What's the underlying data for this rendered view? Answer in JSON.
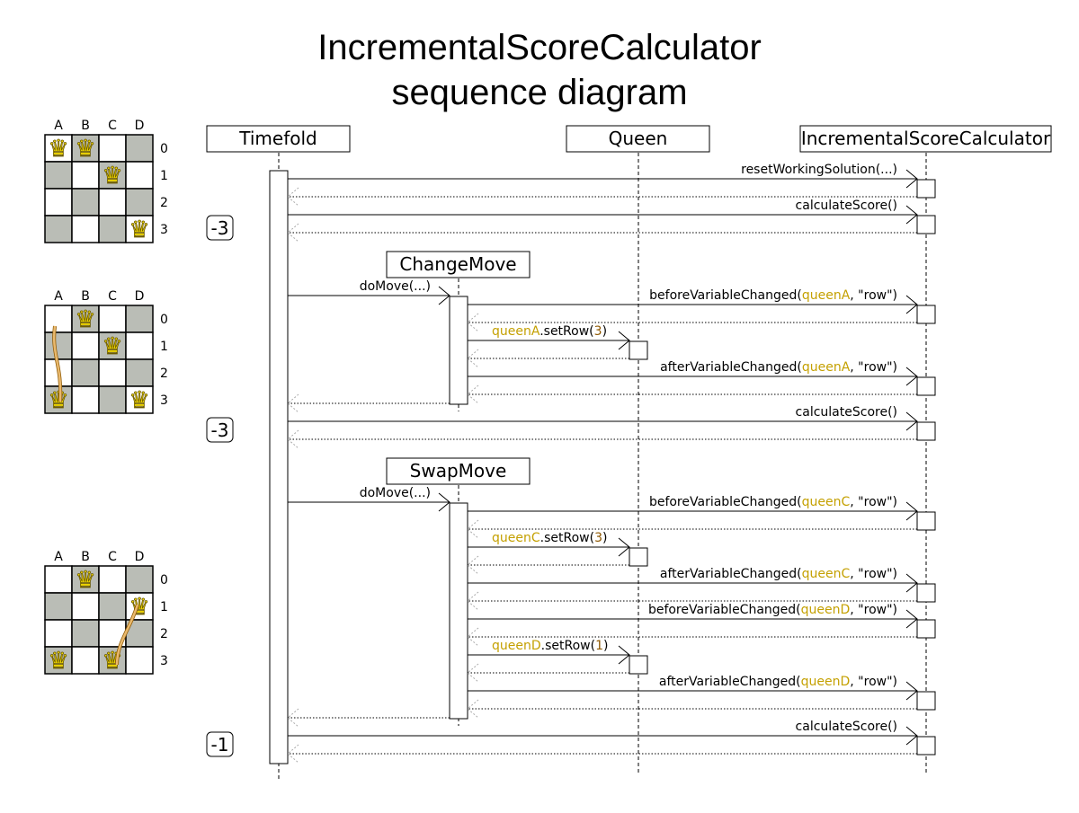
{
  "title": [
    "IncrementalScoreCalculator",
    "sequence diagram"
  ],
  "colors": {
    "variable": "#c4a000",
    "value": "#8f5902",
    "square_dark": "#babdb6",
    "square_light": "#ffffff",
    "queen": "#edd400",
    "arrow": "#e9b96e"
  },
  "participants": {
    "timefold": "Timefold",
    "queen": "Queen",
    "isc": "IncrementalScoreCalculator",
    "change_move": "ChangeMove",
    "swap_move": "SwapMove"
  },
  "board": {
    "columns": [
      "A",
      "B",
      "C",
      "D"
    ],
    "rows": [
      "0",
      "1",
      "2",
      "3"
    ]
  },
  "boards": [
    {
      "queens": [
        [
          0,
          0
        ],
        [
          1,
          0
        ],
        [
          2,
          1
        ],
        [
          3,
          3
        ]
      ],
      "arrow": null
    },
    {
      "queens": [
        [
          1,
          0
        ],
        [
          2,
          1
        ],
        [
          0,
          3
        ],
        [
          3,
          3
        ]
      ],
      "arrow": {
        "from": "A0",
        "to": "A3"
      }
    },
    {
      "queens": [
        [
          1,
          0
        ],
        [
          3,
          1
        ],
        [
          0,
          3
        ],
        [
          2,
          3
        ]
      ],
      "arrow": {
        "from": "C3",
        "to": "D1",
        "bidirectional": true
      }
    }
  ],
  "scores": [
    "-3",
    "-3",
    "-1"
  ],
  "messages": [
    [
      {
        "t": "resetWorkingSolution(...)"
      }
    ],
    [
      {
        "t": "calculateScore()"
      }
    ],
    [
      {
        "t": "doMove(...)"
      }
    ],
    [
      {
        "t": "beforeVariableChanged("
      },
      {
        "t": "queenA",
        "c": "variable"
      },
      {
        "t": ", \"row\")"
      }
    ],
    [
      {
        "t": "queenA",
        "c": "variable"
      },
      {
        "t": ".setRow("
      },
      {
        "t": "3",
        "c": "value"
      },
      {
        "t": ")"
      }
    ],
    [
      {
        "t": "afterVariableChanged("
      },
      {
        "t": "queenA",
        "c": "variable"
      },
      {
        "t": ", \"row\")"
      }
    ],
    [
      {
        "t": "calculateScore()"
      }
    ],
    [
      {
        "t": "doMove(...)"
      }
    ],
    [
      {
        "t": "beforeVariableChanged("
      },
      {
        "t": "queenC",
        "c": "variable"
      },
      {
        "t": ", \"row\")"
      }
    ],
    [
      {
        "t": "queenC",
        "c": "variable"
      },
      {
        "t": ".setRow("
      },
      {
        "t": "3",
        "c": "value"
      },
      {
        "t": ")"
      }
    ],
    [
      {
        "t": "afterVariableChanged("
      },
      {
        "t": "queenC",
        "c": "variable"
      },
      {
        "t": ", \"row\")"
      }
    ],
    [
      {
        "t": "beforeVariableChanged("
      },
      {
        "t": "queenD",
        "c": "variable"
      },
      {
        "t": ", \"row\")"
      }
    ],
    [
      {
        "t": "queenD",
        "c": "variable"
      },
      {
        "t": ".setRow("
      },
      {
        "t": "1",
        "c": "value"
      },
      {
        "t": ")"
      }
    ],
    [
      {
        "t": "afterVariableChanged("
      },
      {
        "t": "queenD",
        "c": "variable"
      },
      {
        "t": ", \"row\")"
      }
    ],
    [
      {
        "t": "calculateScore()"
      }
    ]
  ]
}
